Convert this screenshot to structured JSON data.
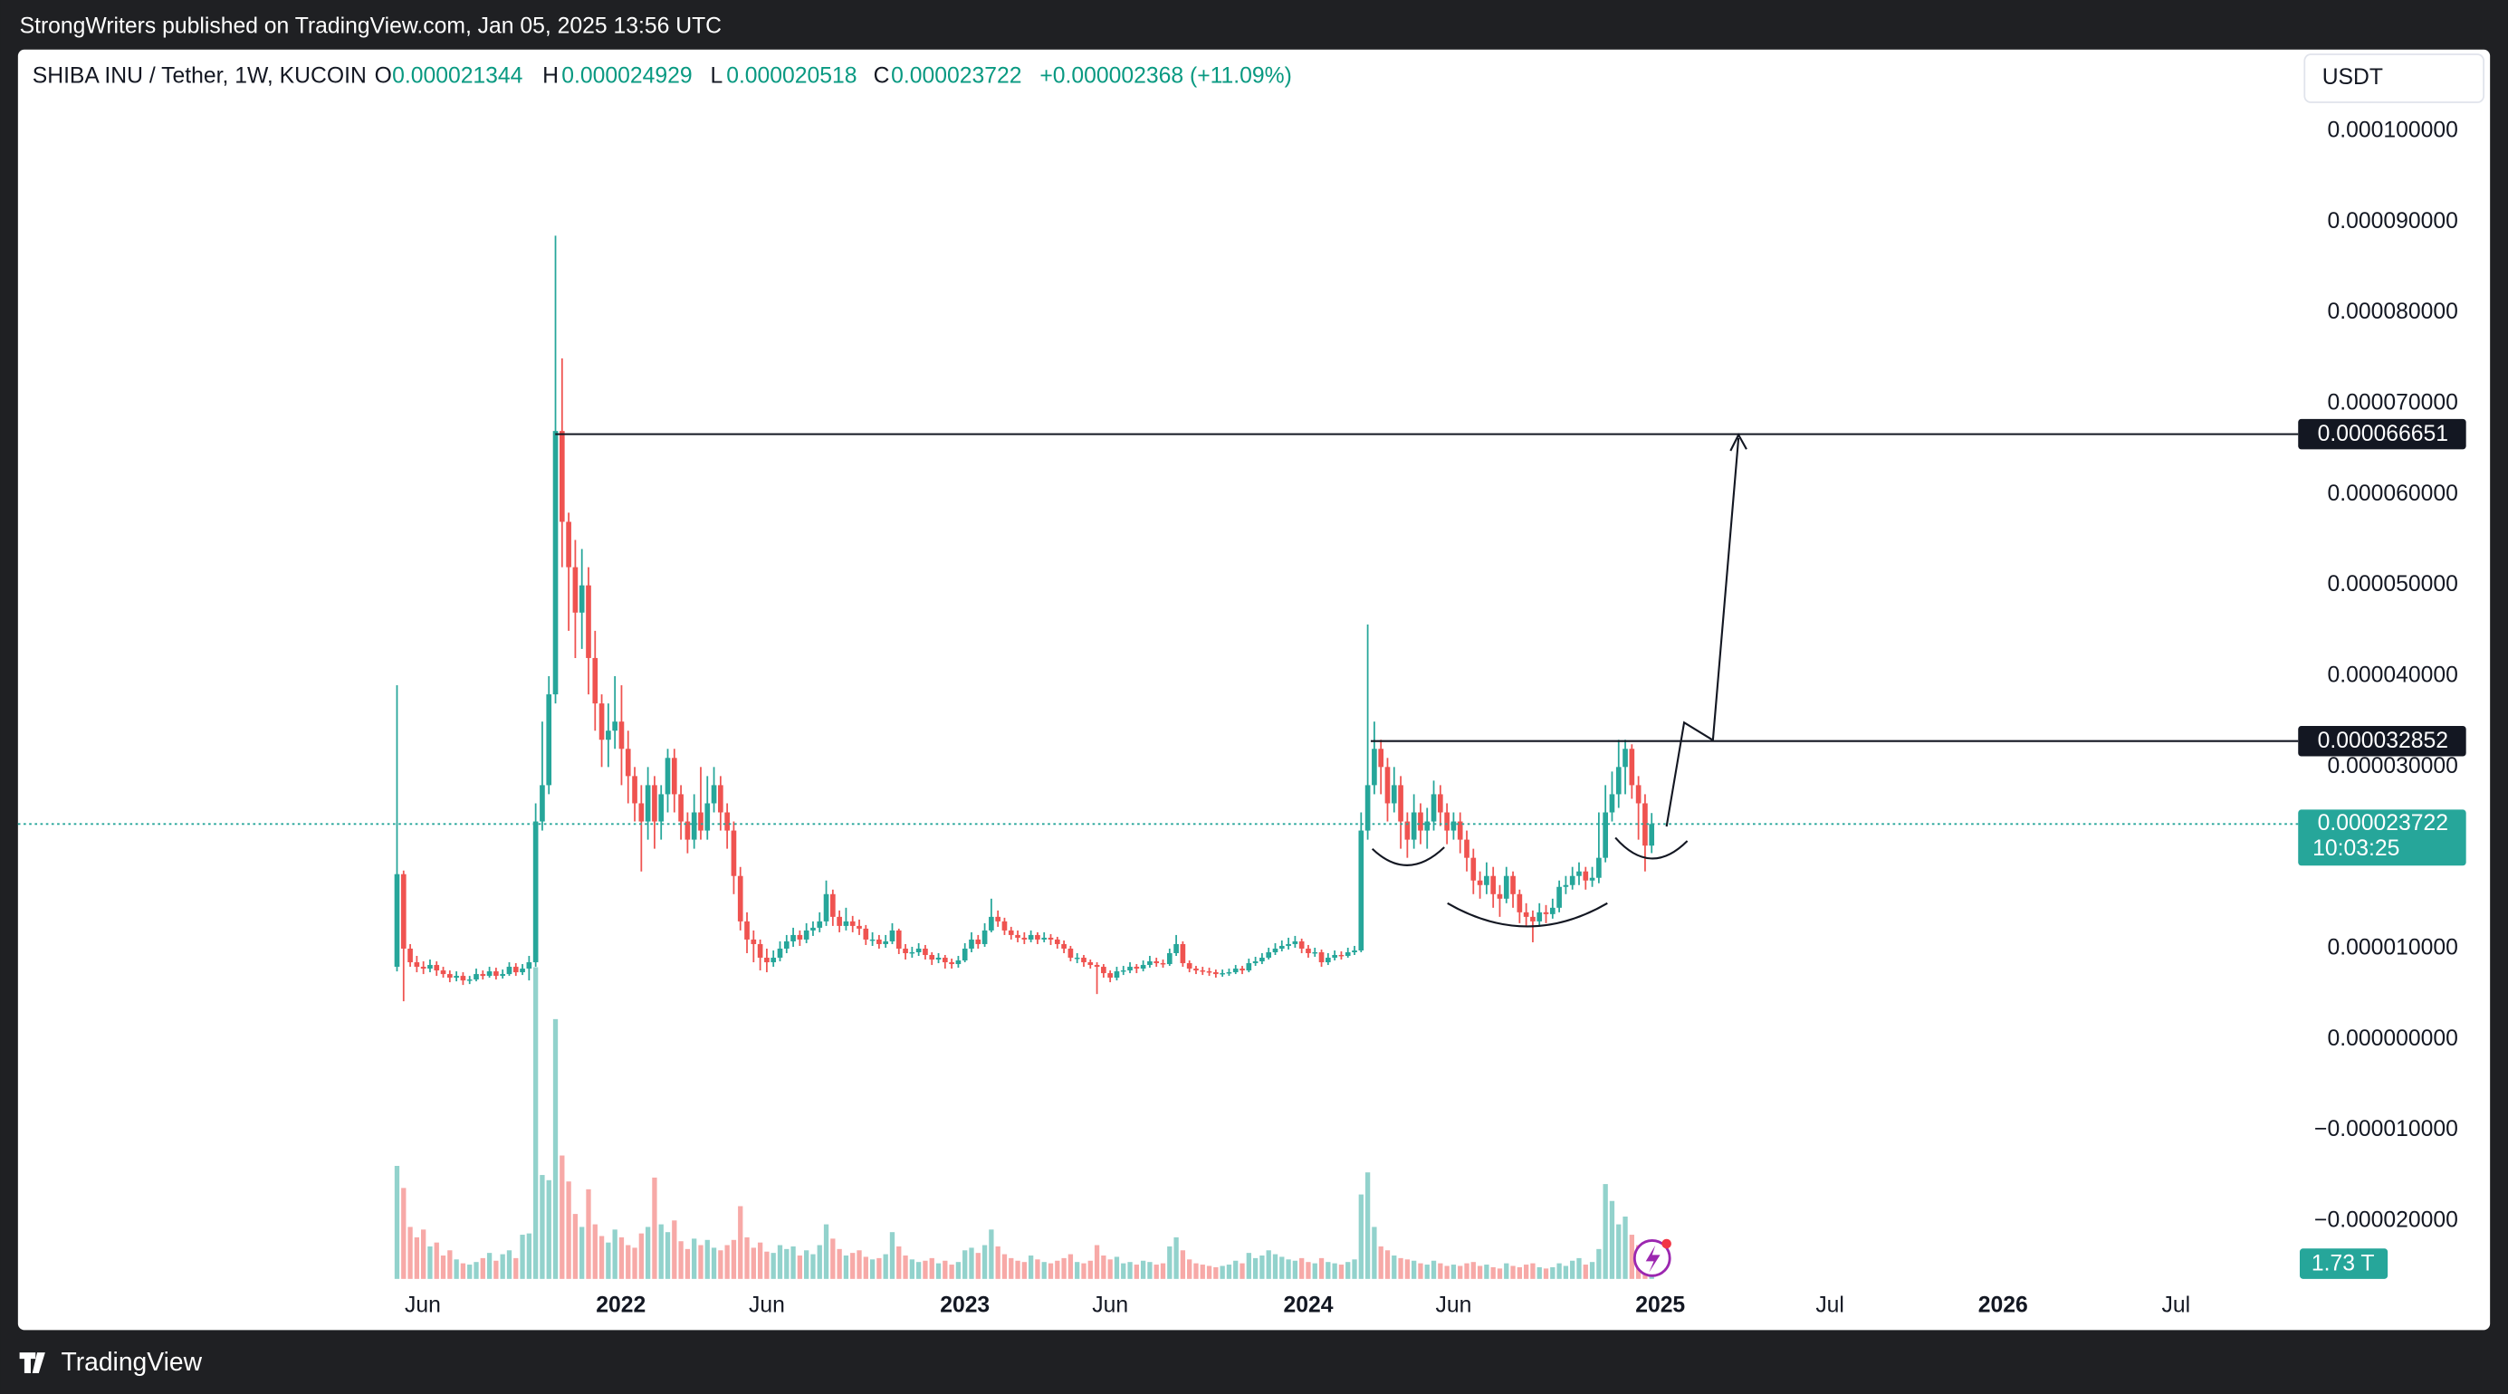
{
  "header": {
    "publisher": "StrongWriters published on TradingView.com, Jan 05, 2025 13:56 UTC",
    "brand": "TradingView",
    "currency": "USDT"
  },
  "chart_data": {
    "type": "candlestick",
    "title": "SHIBA INU / Tether, 1W, KUCOIN",
    "ohlc_letters": [
      "O",
      "H",
      "L",
      "C"
    ],
    "change": "+0.000002368 (+11.09%)",
    "countdown": "10:03:25",
    "volume_label": "1.73 T",
    "up_color": "#26a69a",
    "down_color": "#ef5350",
    "xlim": [
      -57.4,
      287.9
    ],
    "xticks": [
      {
        "value": 3.9,
        "label": "Jun"
      },
      {
        "value": 33.9,
        "label": "2022"
      },
      {
        "value": 56,
        "label": "Jun"
      },
      {
        "value": 86,
        "label": "2023"
      },
      {
        "value": 108,
        "label": "Jun"
      },
      {
        "value": 138,
        "label": "2024"
      },
      {
        "value": 160,
        "label": "Jun"
      },
      {
        "value": 191.3,
        "label": "2025"
      },
      {
        "value": 217,
        "label": "Jul"
      },
      {
        "value": 243.2,
        "label": "2026"
      },
      {
        "value": 269.4,
        "label": "Jul"
      }
    ],
    "ylim": [
      -3.2e-05,
      0.000109
    ],
    "yticks": [
      {
        "value": 0.0001,
        "label": "0.000100000"
      },
      {
        "value": 9e-05,
        "label": "0.000090000"
      },
      {
        "value": 8e-05,
        "label": "0.000080000"
      },
      {
        "value": 7e-05,
        "label": "0.000070000"
      },
      {
        "value": 6e-05,
        "label": "0.000060000"
      },
      {
        "value": 5e-05,
        "label": "0.000050000"
      },
      {
        "value": 4e-05,
        "label": "0.000040000"
      },
      {
        "value": 3e-05,
        "label": "0.000030000"
      },
      {
        "value": 2e-05,
        "label": "0.000020000"
      },
      {
        "value": 1e-05,
        "label": "0.000010000"
      },
      {
        "value": 0,
        "label": "0.000000000"
      },
      {
        "value": -1e-05,
        "label": "−0.000010000"
      },
      {
        "value": -2e-05,
        "label": "−0.000020000"
      }
    ],
    "levels": [
      6.6651e-05,
      3.2852e-05
    ],
    "open": [
      8e-06,
      1.82e-05,
      1e-05,
      8.5e-06,
      8e-06,
      7.8e-06,
      8.2e-06,
      7.6e-06,
      7.2e-06,
      6.8e-06,
      7e-06,
      6.5e-06,
      6.6e-06,
      7.2e-06,
      7e-06,
      7.5e-06,
      7e-06,
      7.2e-06,
      8e-06,
      7.4e-06,
      7.8e-06,
      8.5e-06,
      2.4e-05,
      2.8e-05,
      3.8e-05,
      6.7e-05,
      5.7e-05,
      5.2e-05,
      4.7e-05,
      5e-05,
      4.2e-05,
      3.7e-05,
      3.3e-05,
      3.4e-05,
      3.5e-05,
      3.2e-05,
      2.9e-05,
      2.6e-05,
      2.4e-05,
      2.8e-05,
      2.4e-05,
      2.7e-05,
      3.1e-05,
      2.7e-05,
      2.4e-05,
      2.2e-05,
      2.5e-05,
      2.3e-05,
      2.6e-05,
      2.8e-05,
      2.5e-05,
      2.3e-05,
      1.8e-05,
      1.3e-05,
      1.1e-05,
      1.05e-05,
      9e-06,
      8.5e-06,
      9e-06,
      1e-05,
      1.08e-05,
      1.15e-05,
      1.1e-05,
      1.2e-05,
      1.23e-05,
      1.3e-05,
      1.6e-05,
      1.35e-05,
      1.25e-05,
      1.3e-05,
      1.25e-05,
      1.22e-05,
      1.1e-05,
      1.1e-05,
      1.05e-05,
      1.08e-05,
      1.2e-05,
      1e-05,
      9.5e-06,
      9.6e-06,
      1e-05,
      9.3e-06,
      8.8e-06,
      9e-06,
      8.5e-06,
      8.3e-06,
      8.7e-06,
      1e-05,
      1.1e-05,
      1.05e-05,
      1.2e-05,
      1.35e-05,
      1.3e-05,
      1.2e-05,
      1.15e-05,
      1.12e-05,
      1.1e-05,
      1.15e-05,
      1.1e-05,
      1.12e-05,
      1.1e-05,
      1.05e-05,
      1e-05,
      9e-06,
      9e-06,
      8.5e-06,
      8.2e-06,
      8e-06,
      7.3e-06,
      6.8e-06,
      7.5e-06,
      7.6e-06,
      8e-06,
      7.8e-06,
      8.2e-06,
      8.6e-06,
      8.4e-06,
      8.3e-06,
      9.5e-06,
      1.05e-05,
      8.4e-06,
      7.8e-06,
      7.6e-06,
      7.5e-06,
      7.4e-06,
      7.2e-06,
      7.3e-06,
      7.4e-06,
      7.8e-06,
      7.6e-06,
      8.4e-06,
      8.6e-06,
      9e-06,
      9.6e-06,
      1e-05,
      1.03e-05,
      1.05e-05,
      1.08e-05,
      1e-05,
      9.5e-06,
      9.6e-06,
      8.5e-06,
      9e-06,
      9.3e-06,
      9.2e-06,
      9.6e-06,
      9.8e-06,
      2.3e-05,
      2.8e-05,
      3.2e-05,
      3e-05,
      2.6e-05,
      2.8e-05,
      2.4e-05,
      2.2e-05,
      2.5e-05,
      2.3e-05,
      2.4e-05,
      2.7e-05,
      2.5e-05,
      2.3e-05,
      2.4e-05,
      2.2e-05,
      2e-05,
      1.75e-05,
      1.7e-05,
      1.8e-05,
      1.6e-05,
      1.55e-05,
      1.8e-05,
      1.6e-05,
      1.4e-05,
      1.35e-05,
      1.3e-05,
      1.4e-05,
      1.38e-05,
      1.45e-05,
      1.68e-05,
      1.7e-05,
      1.8e-05,
      1.85e-05,
      1.75e-05,
      1.78e-05,
      2e-05,
      2.5e-05,
      2.7e-05,
      3e-05,
      3.2e-05,
      2.8e-05,
      2.6e-05,
      2.1344e-05
    ],
    "high": [
      3.9e-05,
      1.86e-05,
      1.05e-05,
      9.2e-06,
      8.6e-06,
      8.8e-06,
      8.6e-06,
      8e-06,
      7.6e-06,
      7.5e-06,
      7.4e-06,
      7e-06,
      7.8e-06,
      7.6e-06,
      8e-06,
      7.9e-06,
      7.7e-06,
      8.5e-06,
      8.4e-06,
      8.3e-06,
      9.2e-06,
      2.6e-05,
      3.5e-05,
      4e-05,
      8.85e-05,
      7.5e-05,
      5.8e-05,
      5.5e-05,
      5.4e-05,
      5.2e-05,
      4.5e-05,
      3.8e-05,
      3.7e-05,
      4e-05,
      3.9e-05,
      3.4e-05,
      3e-05,
      2.8e-05,
      3e-05,
      2.9e-05,
      2.8e-05,
      3.2e-05,
      3.2e-05,
      2.8e-05,
      2.5e-05,
      2.7e-05,
      3e-05,
      2.9e-05,
      3e-05,
      2.9e-05,
      2.6e-05,
      2.4e-05,
      1.9e-05,
      1.4e-05,
      1.2e-05,
      1.1e-05,
      1e-05,
      9.8e-06,
      1.08e-05,
      1.15e-05,
      1.23e-05,
      1.2e-05,
      1.28e-05,
      1.3e-05,
      1.4e-05,
      1.75e-05,
      1.65e-05,
      1.42e-05,
      1.45e-05,
      1.36e-05,
      1.32e-05,
      1.26e-05,
      1.18e-05,
      1.15e-05,
      1.15e-05,
      1.28e-05,
      1.22e-05,
      1.05e-05,
      1.02e-05,
      1.06e-05,
      1.04e-05,
      9.6e-06,
      9.5e-06,
      9.3e-06,
      8.9e-06,
      9.2e-06,
      1.06e-05,
      1.18e-05,
      1.15e-05,
      1.28e-05,
      1.55e-05,
      1.42e-05,
      1.34e-05,
      1.24e-05,
      1.2e-05,
      1.18e-05,
      1.2e-05,
      1.18e-05,
      1.18e-05,
      1.16e-05,
      1.13e-05,
      1.09e-05,
      1.03e-05,
      9.5e-06,
      9.3e-06,
      8.8e-06,
      8.5e-06,
      8.3e-06,
      7.6e-06,
      8e-06,
      8.1e-06,
      8.5e-06,
      8.3e-06,
      8.7e-06,
      9.2e-06,
      9e-06,
      8.8e-06,
      1e-05,
      1.15e-05,
      1.08e-05,
      8.7e-06,
      8.1e-06,
      8e-06,
      7.9e-06,
      7.7e-06,
      7.7e-06,
      7.8e-06,
      8.2e-06,
      8.1e-06,
      8.9e-06,
      9.1e-06,
      9.5e-06,
      1.01e-05,
      1.06e-05,
      1.09e-05,
      1.12e-05,
      1.14e-05,
      1.11e-05,
      1.04e-05,
      1.01e-05,
      9.9e-06,
      9.5e-06,
      9.8e-06,
      9.7e-06,
      1.01e-05,
      1.03e-05,
      2.5e-05,
      4.57e-05,
      3.5e-05,
      3.3e-05,
      3.1e-05,
      3e-05,
      2.9e-05,
      2.5e-05,
      2.7e-05,
      2.6e-05,
      2.55e-05,
      2.85e-05,
      2.8e-05,
      2.6e-05,
      2.5e-05,
      2.5e-05,
      2.3e-05,
      2.1e-05,
      1.85e-05,
      1.95e-05,
      1.9e-05,
      1.7e-05,
      1.9e-05,
      1.85e-05,
      1.65e-05,
      1.5e-05,
      1.42e-05,
      1.5e-05,
      1.48e-05,
      1.55e-05,
      1.75e-05,
      1.8e-05,
      1.9e-05,
      1.95e-05,
      1.9e-05,
      1.9e-05,
      2.5e-05,
      2.8e-05,
      2.95e-05,
      3.3e-05,
      3.3e-05,
      3.25e-05,
      2.9e-05,
      2.7e-05,
      2.4929e-05
    ],
    "low": [
      7.5e-06,
      4.2e-06,
      8e-06,
      7.4e-06,
      7.2e-06,
      7.4e-06,
      7e-06,
      6.8e-06,
      6.3e-06,
      6.4e-06,
      6e-06,
      6.1e-06,
      6.4e-06,
      6.6e-06,
      6.8e-06,
      6.6e-06,
      6.7e-06,
      7e-06,
      7e-06,
      7.1e-06,
      6.5e-06,
      8e-06,
      2.3e-05,
      2.7e-05,
      3.7e-05,
      5.2e-05,
      4.5e-05,
      4.2e-05,
      4.3e-05,
      3.8e-05,
      3.4e-05,
      3e-05,
      3e-05,
      3.2e-05,
      2.8e-05,
      2.6e-05,
      2.4e-05,
      1.85e-05,
      2.2e-05,
      2.1e-05,
      2.2e-05,
      2.5e-05,
      2.5e-05,
      2.2e-05,
      2.05e-05,
      2.1e-05,
      2.2e-05,
      2.2e-05,
      2.5e-05,
      2.3e-05,
      2.1e-05,
      1.6e-05,
      1.2e-05,
      9.5e-06,
      8.5e-06,
      7.6e-06,
      7.4e-06,
      8e-06,
      8.6e-06,
      9.5e-06,
      1.02e-05,
      1.03e-05,
      1.06e-05,
      1.14e-05,
      1.18e-05,
      1.25e-05,
      1.25e-05,
      1.18e-05,
      1.2e-05,
      1.18e-05,
      1.15e-05,
      1.04e-05,
      1.03e-05,
      1e-05,
      1.01e-05,
      1.05e-05,
      9.4e-06,
      8.8e-06,
      9e-06,
      9.2e-06,
      8.8e-06,
      8.2e-06,
      8.4e-06,
      7.8e-06,
      7.8e-06,
      7.9e-06,
      8.5e-06,
      9.6e-06,
      1e-05,
      1.02e-05,
      1.18e-05,
      1.24e-05,
      1.15e-05,
      1.1e-05,
      1.07e-05,
      1.05e-05,
      1.07e-05,
      1.05e-05,
      1.07e-05,
      1.04e-05,
      1e-05,
      9.5e-06,
      8.6e-06,
      8.4e-06,
      8e-06,
      7.8e-06,
      5e-06,
      6.8e-06,
      6.3e-06,
      6.5e-06,
      7.1e-06,
      7.3e-06,
      7.3e-06,
      7.5e-06,
      7.9e-06,
      8e-06,
      7.9e-06,
      8.1e-06,
      9.2e-06,
      8e-06,
      7.4e-06,
      7.2e-06,
      7.1e-06,
      7e-06,
      6.8e-06,
      6.9e-06,
      7e-06,
      7.2e-06,
      7.2e-06,
      7.4e-06,
      8.1e-06,
      8.3e-06,
      8.8e-06,
      9.3e-06,
      9.7e-06,
      9.9e-06,
      1.01e-05,
      9.5e-06,
      9e-06,
      9.1e-06,
      8e-06,
      8.2e-06,
      8.7e-06,
      8.8e-06,
      9e-06,
      9.3e-06,
      9.6e-06,
      2.2e-05,
      2.7e-05,
      2.7e-05,
      2.4e-05,
      2.5e-05,
      2.1e-05,
      2e-05,
      2.1e-05,
      2.15e-05,
      2.1e-05,
      2.3e-05,
      2.35e-05,
      2.15e-05,
      2.2e-05,
      2.05e-05,
      1.85e-05,
      1.6e-05,
      1.55e-05,
      1.6e-05,
      1.45e-05,
      1.35e-05,
      1.5e-05,
      1.45e-05,
      1.28e-05,
      1.25e-05,
      1.07e-05,
      1.25e-05,
      1.28e-05,
      1.33e-05,
      1.4e-05,
      1.6e-05,
      1.65e-05,
      1.7e-05,
      1.65e-05,
      1.68e-05,
      1.72e-05,
      1.95e-05,
      2.4e-05,
      2.55e-05,
      2.7e-05,
      2.65e-05,
      2.2e-05,
      1.85e-05,
      2.0518e-05
    ],
    "close": [
      1.82e-05,
      1e-05,
      8.5e-06,
      8e-06,
      7.8e-06,
      8.2e-06,
      7.6e-06,
      7.2e-06,
      6.8e-06,
      7e-06,
      6.5e-06,
      6.6e-06,
      7.2e-06,
      7e-06,
      7.5e-06,
      7e-06,
      7.2e-06,
      8e-06,
      7.4e-06,
      7.8e-06,
      8.5e-06,
      2.4e-05,
      2.8e-05,
      3.8e-05,
      6.7e-05,
      5.7e-05,
      5.2e-05,
      4.7e-05,
      5e-05,
      4.2e-05,
      3.7e-05,
      3.3e-05,
      3.4e-05,
      3.5e-05,
      3.2e-05,
      2.9e-05,
      2.6e-05,
      2.4e-05,
      2.8e-05,
      2.4e-05,
      2.7e-05,
      3.1e-05,
      2.7e-05,
      2.4e-05,
      2.2e-05,
      2.5e-05,
      2.3e-05,
      2.6e-05,
      2.8e-05,
      2.5e-05,
      2.3e-05,
      1.8e-05,
      1.3e-05,
      1.1e-05,
      1.05e-05,
      9e-06,
      8.5e-06,
      9e-06,
      1e-05,
      1.08e-05,
      1.15e-05,
      1.1e-05,
      1.2e-05,
      1.23e-05,
      1.3e-05,
      1.6e-05,
      1.35e-05,
      1.25e-05,
      1.3e-05,
      1.25e-05,
      1.22e-05,
      1.1e-05,
      1.1e-05,
      1.05e-05,
      1.08e-05,
      1.2e-05,
      1e-05,
      9.5e-06,
      9.6e-06,
      1e-05,
      9.3e-06,
      8.8e-06,
      9e-06,
      8.5e-06,
      8.3e-06,
      8.7e-06,
      1e-05,
      1.1e-05,
      1.05e-05,
      1.2e-05,
      1.35e-05,
      1.3e-05,
      1.2e-05,
      1.15e-05,
      1.12e-05,
      1.1e-05,
      1.15e-05,
      1.1e-05,
      1.12e-05,
      1.1e-05,
      1.05e-05,
      1e-05,
      9e-06,
      9e-06,
      8.5e-06,
      8.2e-06,
      8e-06,
      7.3e-06,
      6.8e-06,
      7.5e-06,
      7.6e-06,
      8e-06,
      7.8e-06,
      8.2e-06,
      8.6e-06,
      8.4e-06,
      8.3e-06,
      9.5e-06,
      1.05e-05,
      8.4e-06,
      7.8e-06,
      7.6e-06,
      7.5e-06,
      7.4e-06,
      7.2e-06,
      7.3e-06,
      7.4e-06,
      7.8e-06,
      7.6e-06,
      8.4e-06,
      8.6e-06,
      9e-06,
      9.6e-06,
      1e-05,
      1.03e-05,
      1.05e-05,
      1.08e-05,
      1e-05,
      9.5e-06,
      9.6e-06,
      8.5e-06,
      9e-06,
      9.3e-06,
      9.2e-06,
      9.6e-06,
      9.8e-06,
      2.3e-05,
      2.8e-05,
      3.2e-05,
      3e-05,
      2.6e-05,
      2.8e-05,
      2.4e-05,
      2.2e-05,
      2.5e-05,
      2.3e-05,
      2.4e-05,
      2.7e-05,
      2.5e-05,
      2.3e-05,
      2.4e-05,
      2.2e-05,
      2e-05,
      1.75e-05,
      1.7e-05,
      1.8e-05,
      1.6e-05,
      1.55e-05,
      1.8e-05,
      1.6e-05,
      1.4e-05,
      1.35e-05,
      1.3e-05,
      1.4e-05,
      1.38e-05,
      1.45e-05,
      1.68e-05,
      1.7e-05,
      1.8e-05,
      1.85e-05,
      1.75e-05,
      1.78e-05,
      2e-05,
      2.5e-05,
      2.7e-05,
      3e-05,
      3.2e-05,
      2.8e-05,
      2.6e-05,
      2.1344e-05,
      2.3722e-05
    ],
    "volume": [
      8.7,
      7,
      4,
      3.2,
      3.8,
      2.5,
      2.8,
      1.8,
      2.2,
      1.5,
      1.2,
      1.1,
      1.3,
      1.6,
      2,
      1.4,
      1.9,
      2.2,
      1.6,
      3.4,
      3.5,
      24,
      8,
      7.6,
      20,
      9.5,
      7.5,
      5,
      4,
      6.9,
      4.2,
      3.3,
      2.8,
      3.8,
      3.2,
      2.6,
      2.4,
      3.5,
      4,
      7.8,
      4.2,
      3.6,
      4.5,
      2.9,
      2.3,
      3.1,
      2.6,
      3,
      2.4,
      2.2,
      2.6,
      3,
      5.6,
      3.2,
      2.4,
      2.8,
      2.1,
      2,
      2.6,
      2.3,
      2.5,
      1.8,
      2.2,
      1.9,
      2.6,
      4.2,
      3.1,
      2.3,
      1.8,
      2,
      2.2,
      1.7,
      1.5,
      1.6,
      1.9,
      3.6,
      2.5,
      1.8,
      1.5,
      1.3,
      1.4,
      1.6,
      1.2,
      1.4,
      1.1,
      1.3,
      2.2,
      2.4,
      2,
      2.6,
      3.8,
      2.5,
      1.9,
      1.6,
      1.4,
      1.3,
      1.8,
      1.5,
      1.3,
      1.2,
      1.4,
      1.6,
      1.9,
      1.3,
      1.2,
      1.4,
      2.6,
      1.8,
      1.5,
      1.7,
      1.2,
      1.3,
      1.1,
      1.4,
      1.3,
      1.1,
      1.2,
      2.5,
      3.2,
      2.2,
      1.5,
      1.2,
      1.1,
      1,
      0.9,
      1,
      1.1,
      1.4,
      1.2,
      2,
      1.6,
      1.8,
      2.2,
      1.9,
      1.7,
      1.5,
      1.4,
      1.6,
      1.3,
      1.2,
      1.6,
      1.3,
      1.2,
      1.1,
      1.3,
      1.5,
      6.5,
      8.2,
      4,
      2.5,
      2.2,
      1.8,
      1.6,
      1.5,
      1.4,
      1.2,
      1.1,
      1.4,
      1.2,
      1,
      1.1,
      1,
      1.2,
      1.3,
      1,
      1.1,
      0.9,
      0.8,
      1.2,
      1,
      0.9,
      1.1,
      1.2,
      0.9,
      0.8,
      0.9,
      1.2,
      1,
      1.4,
      1.6,
      1.1,
      1.3,
      2.3,
      7.3,
      6,
      4.2,
      4.8,
      3.4,
      2.6,
      2.2,
      1.73
    ]
  }
}
